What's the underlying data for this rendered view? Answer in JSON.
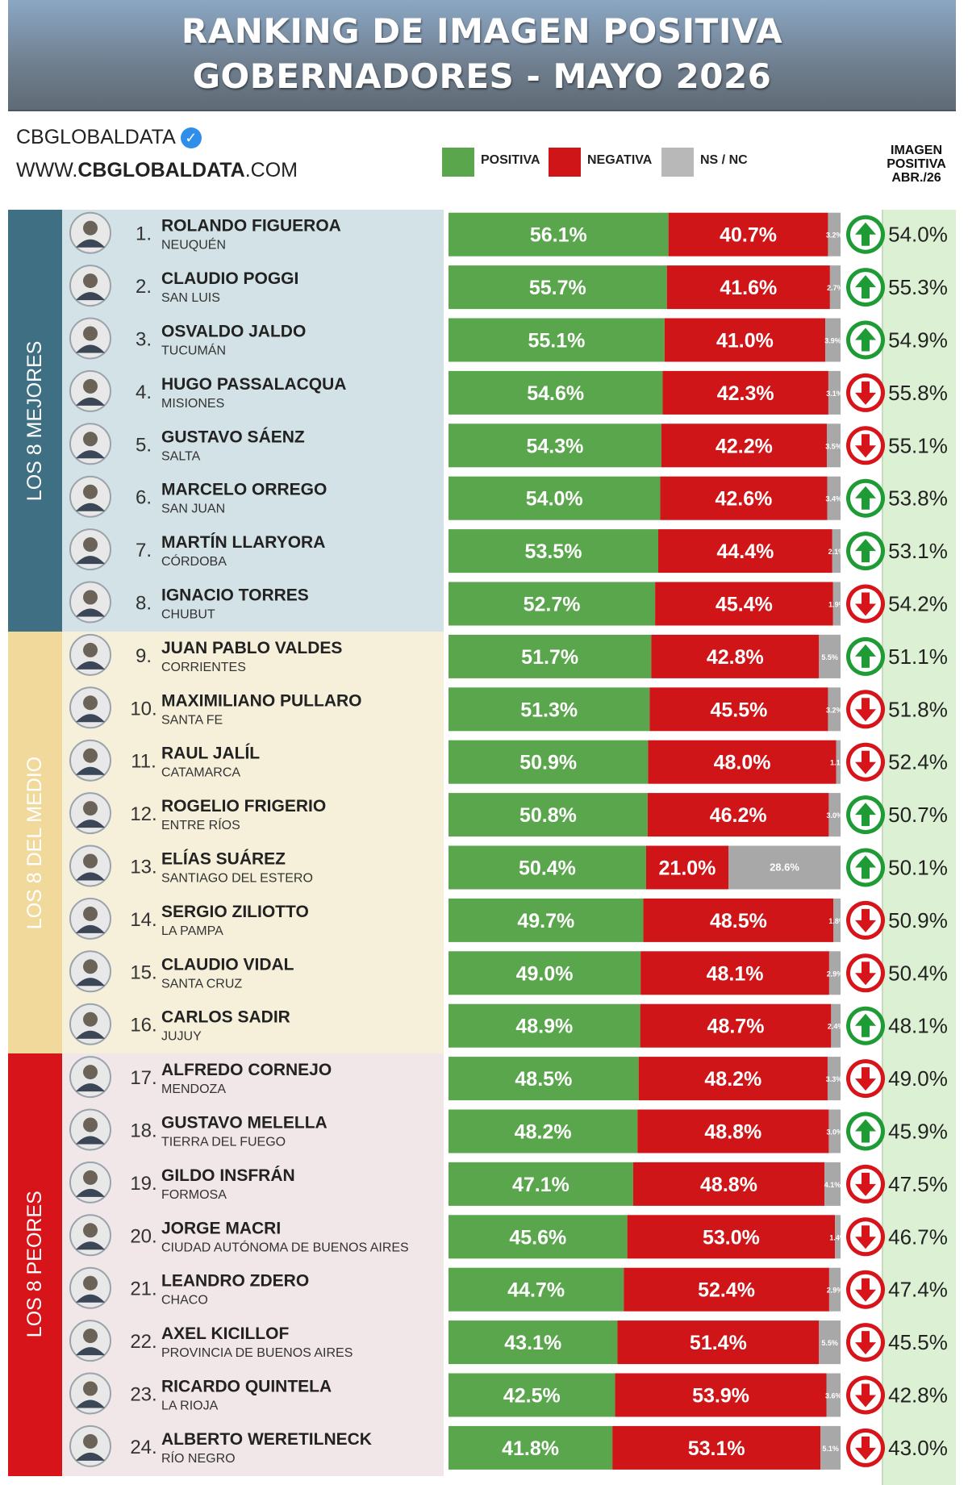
{
  "title": {
    "line1": "RANKING DE IMAGEN POSITIVA",
    "line2": "GOBERNADORES - MAYO 2026"
  },
  "brand": {
    "name": "CBGLOBALDATA",
    "website_prefix": "WWW.",
    "website_bold": "CBGLOBALDATA",
    "website_suffix": ".COM",
    "verified_icon": "verified-check-icon"
  },
  "legend": {
    "positive_label": "POSITIVA",
    "negative_label": "NEGATIVA",
    "nsnc_label": "NS / NC"
  },
  "prev_column_header": {
    "line1": "IMAGEN",
    "line2": "POSITIVA",
    "line3": "ABR./26"
  },
  "groups": [
    {
      "label": "LOS 8 MEJORES",
      "color": "#3f6f82",
      "bg": "#d2e2e6"
    },
    {
      "label": "LOS 8 DEL MEDIO",
      "color": "#f0d99a",
      "bg": "#f6f0da"
    },
    {
      "label": "LOS 8 PEORES",
      "color": "#d8141b",
      "bg": "#f1e6e8"
    }
  ],
  "colors": {
    "positive": "#5aa64c",
    "negative": "#d01519",
    "nsnc": "#a8a8a8",
    "arrow_up": "#1e9b34",
    "arrow_down": "#d8141b"
  },
  "chart_data": {
    "type": "bar",
    "stacked": true,
    "orientation": "horizontal",
    "title": "RANKING DE IMAGEN POSITIVA GOBERNADORES - MAYO 2026",
    "series": [
      {
        "name": "POSITIVA",
        "values": [
          56.1,
          55.7,
          55.1,
          54.6,
          54.3,
          54.0,
          53.5,
          52.7,
          51.7,
          51.3,
          50.9,
          50.8,
          50.4,
          49.7,
          49.0,
          48.9,
          48.5,
          48.2,
          47.1,
          45.6,
          44.7,
          43.1,
          42.5,
          41.8
        ]
      },
      {
        "name": "NEGATIVA",
        "values": [
          40.7,
          41.6,
          41.0,
          42.3,
          42.2,
          42.6,
          44.4,
          45.4,
          42.8,
          45.5,
          48.0,
          46.2,
          21.0,
          48.5,
          48.1,
          48.7,
          48.2,
          48.8,
          48.8,
          53.0,
          52.4,
          51.4,
          53.9,
          53.1
        ]
      },
      {
        "name": "NS / NC",
        "values": [
          3.2,
          2.7,
          3.9,
          3.1,
          3.5,
          3.4,
          2.1,
          1.9,
          5.5,
          3.2,
          1.1,
          3.0,
          28.6,
          1.8,
          2.9,
          2.4,
          3.3,
          3.0,
          4.1,
          1.4,
          2.9,
          5.5,
          3.6,
          5.1
        ]
      }
    ],
    "rows": [
      {
        "rank": "1.",
        "name": "ROLANDO FIGUEROA",
        "province": "NEUQUÉN",
        "pos": "56.1%",
        "neg": "40.7%",
        "ns": "3.2%",
        "trend": "up",
        "prev": "54.0%"
      },
      {
        "rank": "2.",
        "name": "CLAUDIO POGGI",
        "province": "SAN LUIS",
        "pos": "55.7%",
        "neg": "41.6%",
        "ns": "2.7%",
        "trend": "up",
        "prev": "55.3%"
      },
      {
        "rank": "3.",
        "name": "OSVALDO JALDO",
        "province": "TUCUMÁN",
        "pos": "55.1%",
        "neg": "41.0%",
        "ns": "3.9%",
        "trend": "up",
        "prev": "54.9%"
      },
      {
        "rank": "4.",
        "name": "HUGO PASSALACQUA",
        "province": "MISIONES",
        "pos": "54.6%",
        "neg": "42.3%",
        "ns": "3.1%",
        "trend": "down",
        "prev": "55.8%"
      },
      {
        "rank": "5.",
        "name": "GUSTAVO SÁENZ",
        "province": "SALTA",
        "pos": "54.3%",
        "neg": "42.2%",
        "ns": "3.5%",
        "trend": "down",
        "prev": "55.1%"
      },
      {
        "rank": "6.",
        "name": "MARCELO ORREGO",
        "province": "SAN JUAN",
        "pos": "54.0%",
        "neg": "42.6%",
        "ns": "3.4%",
        "trend": "up",
        "prev": "53.8%"
      },
      {
        "rank": "7.",
        "name": "MARTÍN LLARYORA",
        "province": "CÓRDOBA",
        "pos": "53.5%",
        "neg": "44.4%",
        "ns": "2.1%",
        "trend": "up",
        "prev": "53.1%"
      },
      {
        "rank": "8.",
        "name": "IGNACIO TORRES",
        "province": "CHUBUT",
        "pos": "52.7%",
        "neg": "45.4%",
        "ns": "1.9%",
        "trend": "down",
        "prev": "54.2%"
      },
      {
        "rank": "9.",
        "name": "JUAN PABLO VALDES",
        "province": "CORRIENTES",
        "pos": "51.7%",
        "neg": "42.8%",
        "ns": "5.5%",
        "trend": "up",
        "prev": "51.1%"
      },
      {
        "rank": "10.",
        "name": "MAXIMILIANO PULLARO",
        "province": "SANTA FE",
        "pos": "51.3%",
        "neg": "45.5%",
        "ns": "3.2%",
        "trend": "down",
        "prev": "51.8%"
      },
      {
        "rank": "11.",
        "name": "RAUL JALÍL",
        "province": "CATAMARCA",
        "pos": "50.9%",
        "neg": "48.0%",
        "ns": "1.1%",
        "trend": "down",
        "prev": "52.4%"
      },
      {
        "rank": "12.",
        "name": "ROGELIO FRIGERIO",
        "province": "ENTRE RÍOS",
        "pos": "50.8%",
        "neg": "46.2%",
        "ns": "3.0%",
        "trend": "up",
        "prev": "50.7%"
      },
      {
        "rank": "13.",
        "name": "ELÍAS SUÁREZ",
        "province": "SANTIAGO DEL ESTERO",
        "pos": "50.4%",
        "neg": "21.0%",
        "ns": "28.6%",
        "trend": "up",
        "prev": "50.1%"
      },
      {
        "rank": "14.",
        "name": "SERGIO ZILIOTTO",
        "province": "LA PAMPA",
        "pos": "49.7%",
        "neg": "48.5%",
        "ns": "1.8%",
        "trend": "down",
        "prev": "50.9%"
      },
      {
        "rank": "15.",
        "name": "CLAUDIO VIDAL",
        "province": "SANTA CRUZ",
        "pos": "49.0%",
        "neg": "48.1%",
        "ns": "2.9%",
        "trend": "down",
        "prev": "50.4%"
      },
      {
        "rank": "16.",
        "name": "CARLOS SADIR",
        "province": "JUJUY",
        "pos": "48.9%",
        "neg": "48.7%",
        "ns": "2.4%",
        "trend": "up",
        "prev": "48.1%"
      },
      {
        "rank": "17.",
        "name": "ALFREDO CORNEJO",
        "province": "MENDOZA",
        "pos": "48.5%",
        "neg": "48.2%",
        "ns": "3.3%",
        "trend": "down",
        "prev": "49.0%"
      },
      {
        "rank": "18.",
        "name": "GUSTAVO MELELLA",
        "province": "TIERRA DEL FUEGO",
        "pos": "48.2%",
        "neg": "48.8%",
        "ns": "3.0%",
        "trend": "up",
        "prev": "45.9%"
      },
      {
        "rank": "19.",
        "name": "GILDO INSFRÁN",
        "province": "FORMOSA",
        "pos": "47.1%",
        "neg": "48.8%",
        "ns": "4.1%",
        "trend": "down",
        "prev": "47.5%"
      },
      {
        "rank": "20.",
        "name": "JORGE MACRI",
        "province": "CIUDAD AUTÓNOMA DE BUENOS AIRES",
        "pos": "45.6%",
        "neg": "53.0%",
        "ns": "1.4%",
        "trend": "down",
        "prev": "46.7%"
      },
      {
        "rank": "21.",
        "name": "LEANDRO ZDERO",
        "province": "CHACO",
        "pos": "44.7%",
        "neg": "52.4%",
        "ns": "2.9%",
        "trend": "down",
        "prev": "47.4%"
      },
      {
        "rank": "22.",
        "name": "AXEL KICILLOF",
        "province": "PROVINCIA DE BUENOS AIRES",
        "pos": "43.1%",
        "neg": "51.4%",
        "ns": "5.5%",
        "trend": "down",
        "prev": "45.5%"
      },
      {
        "rank": "23.",
        "name": "RICARDO QUINTELA",
        "province": "LA RIOJA",
        "pos": "42.5%",
        "neg": "53.9%",
        "ns": "3.6%",
        "trend": "down",
        "prev": "42.8%"
      },
      {
        "rank": "24.",
        "name": "ALBERTO WERETILNECK",
        "province": "RÍO NEGRO",
        "pos": "41.8%",
        "neg": "53.1%",
        "ns": "5.1%",
        "trend": "down",
        "prev": "43.0%"
      }
    ]
  }
}
